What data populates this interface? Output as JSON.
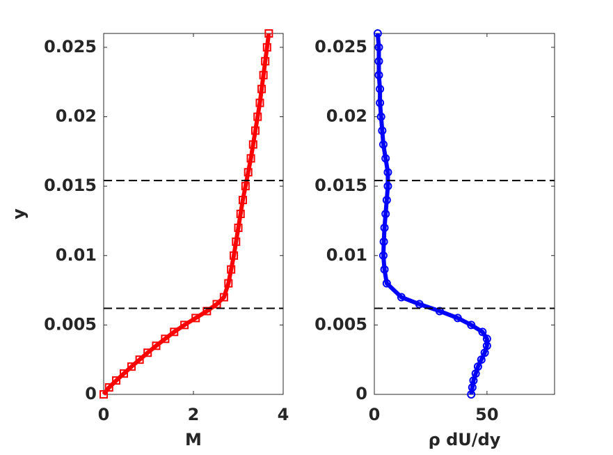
{
  "chart_data": [
    {
      "type": "scatter",
      "xlabel": "M",
      "ylabel": "y",
      "color": "#ff0000",
      "marker": "square",
      "x": [
        0,
        0.12,
        0.28,
        0.45,
        0.62,
        0.8,
        0.98,
        1.17,
        1.37,
        1.57,
        1.8,
        2.05,
        2.3,
        2.52,
        2.68,
        2.78,
        2.84,
        2.9,
        2.95,
        3.0,
        3.05,
        3.1,
        3.16,
        3.22,
        3.28,
        3.33,
        3.38,
        3.43,
        3.48,
        3.52,
        3.56,
        3.6,
        3.64,
        3.68
      ],
      "values": [
        0,
        0.0005,
        0.001,
        0.0015,
        0.002,
        0.0025,
        0.003,
        0.0035,
        0.004,
        0.0045,
        0.005,
        0.0055,
        0.006,
        0.0065,
        0.007,
        0.008,
        0.009,
        0.01,
        0.011,
        0.012,
        0.013,
        0.014,
        0.015,
        0.016,
        0.017,
        0.018,
        0.019,
        0.02,
        0.021,
        0.022,
        0.023,
        0.024,
        0.025,
        0.026
      ],
      "xlim": [
        0,
        4
      ],
      "xticks": [
        0,
        2,
        4
      ],
      "ylim": [
        0,
        0.026
      ],
      "yticks": [
        0,
        0.005,
        0.01,
        0.015,
        0.02,
        0.025
      ],
      "hlines": [
        0.0154,
        0.0062
      ]
    },
    {
      "type": "scatter",
      "xlabel": "ρ dU/dy",
      "color": "#0000ff",
      "marker": "circle",
      "x": [
        43,
        43.5,
        44,
        45,
        46,
        47.5,
        49,
        50,
        50,
        48,
        43,
        37,
        29,
        20,
        12,
        5.5,
        4.5,
        4,
        4.2,
        4.5,
        5,
        5.5,
        6,
        6,
        5,
        4,
        3.5,
        3,
        2.5,
        2.5,
        2,
        2,
        2,
        1.5
      ],
      "values": [
        0,
        0.0005,
        0.001,
        0.0015,
        0.002,
        0.0025,
        0.003,
        0.0035,
        0.004,
        0.0045,
        0.005,
        0.0055,
        0.006,
        0.0065,
        0.007,
        0.008,
        0.009,
        0.01,
        0.011,
        0.012,
        0.013,
        0.014,
        0.015,
        0.016,
        0.017,
        0.018,
        0.019,
        0.02,
        0.021,
        0.022,
        0.023,
        0.024,
        0.025,
        0.026
      ],
      "xlim": [
        0,
        80
      ],
      "xticks": [
        0,
        50
      ],
      "ylim": [
        0,
        0.026
      ],
      "yticks": [
        0,
        0.005,
        0.01,
        0.015,
        0.02,
        0.025
      ],
      "hlines": [
        0.0154,
        0.0062
      ]
    }
  ]
}
